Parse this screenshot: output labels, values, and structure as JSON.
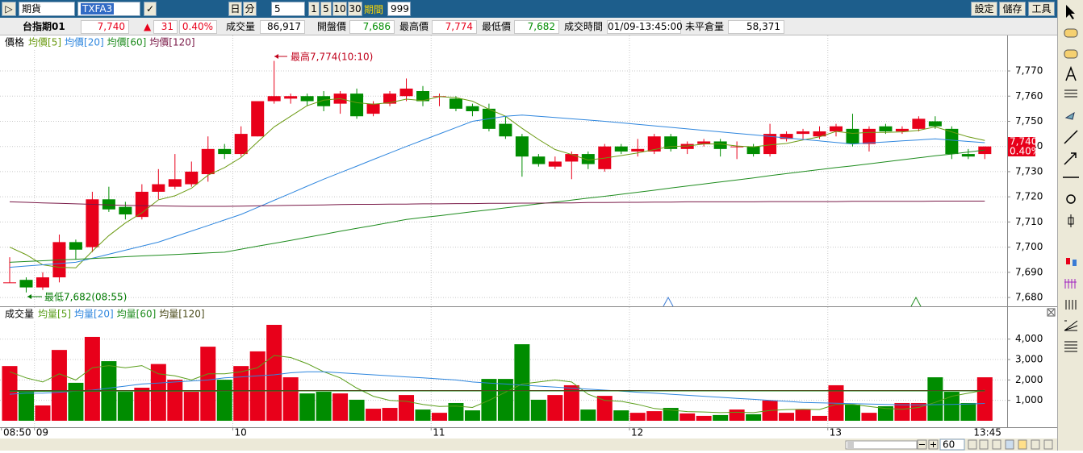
{
  "toolbar": {
    "market": "期貨",
    "symbol": "TXFA3",
    "day": "日",
    "minute": "分",
    "interval": "5",
    "quick": [
      "1",
      "5",
      "10",
      "30"
    ],
    "period_label": "期間",
    "period": "999",
    "buttons": [
      "設定",
      "儲存",
      "工具"
    ]
  },
  "info": {
    "name": "台指期01",
    "last": "7,740",
    "change": "31",
    "change_pct": "0.40%",
    "volume_label": "成交量",
    "volume": "86,917",
    "open_label": "開盤價",
    "open": "7,686",
    "high_label": "最高價",
    "high": "7,774",
    "low_label": "最低價",
    "low": "7,682",
    "time_label": "成交時間",
    "time": "01/09-13:45:00",
    "oi_label": "未平倉量",
    "oi": "58,371"
  },
  "chart_data": [
    {
      "type": "candlestick",
      "name": "價格",
      "up_color": "#e8001a",
      "down_color": "#008c00",
      "categories": [
        "08:50",
        null,
        "09",
        null,
        null,
        null,
        null,
        null,
        null,
        null,
        null,
        null,
        null,
        null,
        "10",
        null,
        null,
        null,
        null,
        null,
        null,
        null,
        null,
        null,
        null,
        null,
        "11",
        null,
        null,
        null,
        null,
        null,
        null,
        null,
        null,
        null,
        null,
        null,
        "12",
        null,
        null,
        null,
        null,
        null,
        null,
        null,
        null,
        null,
        null,
        null,
        "13",
        null,
        null,
        null,
        null,
        null,
        null,
        null,
        null,
        "13:45"
      ],
      "open": [
        7686,
        7687,
        7684,
        7688,
        7702,
        7700,
        7719,
        7716,
        7712,
        7722,
        7724,
        7725,
        7729,
        7739,
        7737,
        7744,
        7758,
        7759,
        7760,
        7760,
        7757,
        7761,
        7753,
        7757,
        7760,
        7762,
        7760,
        7759,
        7756,
        7755,
        7749,
        7744,
        7736,
        7732,
        7734,
        7737,
        7731,
        7740,
        7738,
        7738,
        7744,
        7739,
        7741,
        7742,
        7740,
        7740,
        7737,
        7743,
        7745,
        7744,
        7746,
        7747,
        7741,
        7748,
        7746,
        7747,
        7750,
        7747,
        7737,
        7737
      ],
      "high": [
        7696,
        7688,
        7690,
        7705,
        7703,
        7722,
        7724,
        7718,
        7725,
        7731,
        7737,
        7734,
        7744,
        7741,
        7748,
        7758,
        7774,
        7761,
        7761,
        7762,
        7762,
        7763,
        7758,
        7762,
        7767,
        7764,
        7761,
        7760,
        7757,
        7757,
        7752,
        7745,
        7737,
        7736,
        7738,
        7738,
        7741,
        7741,
        7743,
        7745,
        7745,
        7742,
        7743,
        7743,
        7742,
        7741,
        7749,
        7746,
        7747,
        7748,
        7749,
        7753,
        7748,
        7749,
        7748,
        7752,
        7752,
        7748,
        7739,
        7740
      ],
      "low": [
        7686,
        7682,
        7683,
        7686,
        7695,
        7698,
        7714,
        7711,
        7711,
        7719,
        7723,
        7724,
        7726,
        7735,
        7736,
        7744,
        7757,
        7757,
        7756,
        7754,
        7753,
        7751,
        7752,
        7756,
        7758,
        7756,
        7756,
        7754,
        7752,
        7746,
        7743,
        7728,
        7732,
        7731,
        7727,
        7731,
        7730,
        7737,
        7736,
        7737,
        7738,
        7737,
        7740,
        7736,
        7735,
        7736,
        7736,
        7742,
        7743,
        7743,
        7744,
        7740,
        7738,
        7745,
        7745,
        7746,
        7747,
        7735,
        7735,
        7735
      ],
      "close": [
        7686,
        7684,
        7688,
        7702,
        7699,
        7719,
        7715,
        7713,
        7722,
        7725,
        7727,
        7730,
        7739,
        7737,
        7745,
        7758,
        7760,
        7760,
        7758,
        7756,
        7761,
        7752,
        7757,
        7761,
        7763,
        7758,
        7760,
        7755,
        7754,
        7747,
        7744,
        7736,
        7733,
        7734,
        7737,
        7733,
        7740,
        7738,
        7739,
        7744,
        7739,
        7741,
        7742,
        7739,
        7740,
        7737,
        7745,
        7745,
        7746,
        7746,
        7748,
        7741,
        7747,
        7746,
        7747,
        7751,
        7748,
        7737,
        7736,
        7740
      ],
      "series": [
        {
          "name": "均價[5]",
          "color": "#6b9a12",
          "values": [
            7700,
            7697,
            7693,
            7692,
            7691.8,
            7698.4,
            7704.6,
            7709.6,
            7713.6,
            7718.8,
            7720.4,
            7723.4,
            7728.6,
            7731.6,
            7735.6,
            7741.8,
            7747.8,
            7752,
            7756.2,
            7758.4,
            7759,
            7757.4,
            7756.8,
            7757.4,
            7758.8,
            7758.2,
            7759.8,
            7759.4,
            7758,
            7754.8,
            7752,
            7747.2,
            7742.8,
            7738.8,
            7736.8,
            7734.6,
            7735.4,
            7736.4,
            7737.4,
            7738.8,
            7740,
            7740.2,
            7741,
            7741,
            7740.2,
            7739.8,
            7740.6,
            7741.2,
            7742.6,
            7743.8,
            7746,
            7745.2,
            7745.6,
            7745.6,
            7745.8,
            7746.4,
            7747.8,
            7745.8,
            7743.8,
            7742.4
          ]
        },
        {
          "name": "均價[20]",
          "color": "#2e86de",
          "values": [
            7692,
            7692.5,
            7693,
            7693.5,
            7694,
            7695.6,
            7697.2,
            7698.8,
            7700.4,
            7702,
            7704.2,
            7706.4,
            7708.6,
            7710.8,
            7713,
            7715.8,
            7718.6,
            7721.4,
            7724.2,
            7727,
            7729.6,
            7732.2,
            7734.8,
            7737.4,
            7740,
            7742.5,
            7745,
            7747.5,
            7750,
            7751,
            7752,
            7752.5,
            7752,
            7751.5,
            7751,
            7750.5,
            7750,
            7749.4,
            7748.8,
            7748.2,
            7747.6,
            7747,
            7746.4,
            7745.8,
            7745.2,
            7744.6,
            7744,
            7743.4,
            7742.8,
            7742.2,
            7741.6,
            7741,
            7741.4,
            7741.8,
            7742.2,
            7742.6,
            7743,
            7742.5,
            7742,
            7741.5
          ]
        },
        {
          "name": "均價[60]",
          "color": "#1e8c1e",
          "values": [
            7694,
            7694.3,
            7694.6,
            7694.9,
            7695.2,
            7695.5,
            7695.8,
            7696.2,
            7696.5,
            7696.8,
            7697.1,
            7697.4,
            7697.7,
            7698,
            7699.2,
            7700.4,
            7701.5,
            7702.7,
            7703.9,
            7705.1,
            7706.3,
            7707.5,
            7708.6,
            7709.8,
            7711,
            7711.8,
            7712.5,
            7713.3,
            7714.1,
            7714.8,
            7715.6,
            7716.4,
            7717.2,
            7717.9,
            7718.7,
            7719.5,
            7720.2,
            7721,
            7721.8,
            7722.6,
            7723.5,
            7724.3,
            7725.1,
            7725.9,
            7726.7,
            7727.5,
            7728.4,
            7729.2,
            7730,
            7730.8,
            7731.6,
            7732.3,
            7733.1,
            7733.9,
            7734.7,
            7735.5,
            7736.3,
            7737,
            7737.8,
            7738.6
          ]
        },
        {
          "name": "均價[120]",
          "color": "#7a1a48",
          "values": [
            7718,
            7717.8,
            7717.6,
            7717.4,
            7717.2,
            7717,
            7716.8,
            7716.6,
            7716.5,
            7716.4,
            7716.3,
            7716.2,
            7716.2,
            7716.2,
            7716.3,
            7716.4,
            7716.5,
            7716.6,
            7716.7,
            7716.8,
            7716.9,
            7717,
            7717,
            7717.1,
            7717.1,
            7717.2,
            7717.2,
            7717.3,
            7717.3,
            7717.4,
            7717.4,
            7717.5,
            7717.5,
            7717.6,
            7717.6,
            7717.7,
            7717.7,
            7717.8,
            7717.8,
            7717.9,
            7717.9,
            7718,
            7718,
            7718,
            7718,
            7718,
            7718.1,
            7718.1,
            7718.1,
            7718.1,
            7718.1,
            7718.2,
            7718.2,
            7718.2,
            7718.2,
            7718.2,
            7718.3,
            7718.3,
            7718.3,
            7718.3
          ]
        }
      ],
      "ylim": [
        7676.5,
        7784.1
      ],
      "yticks": [
        {
          "value": 7680,
          "label": "7,680"
        },
        {
          "value": 7690,
          "label": "7,690"
        },
        {
          "value": 7700,
          "label": "7,700"
        },
        {
          "value": 7710,
          "label": "7,710"
        },
        {
          "value": 7720,
          "label": "7,720"
        },
        {
          "value": 7730,
          "label": "7,730"
        },
        {
          "value": 7740,
          "label": "7,740"
        },
        {
          "value": 7750,
          "label": "7,750"
        },
        {
          "value": 7760,
          "label": "7,760"
        },
        {
          "value": 7770,
          "label": "7,770"
        }
      ],
      "grid": true,
      "annotations": [
        "最高7,774(10:10)",
        "最低7,682(08:55)"
      ]
    },
    {
      "type": "bar",
      "name": "成交量",
      "values": [
        2680,
        1420,
        750,
        3470,
        1860,
        4110,
        2920,
        1420,
        1620,
        2780,
        2010,
        1420,
        3630,
        2010,
        2680,
        3400,
        4700,
        2130,
        1340,
        1420,
        1340,
        1030,
        590,
        630,
        1260,
        550,
        390,
        870,
        510,
        2050,
        2050,
        3750,
        1030,
        1260,
        1740,
        550,
        1220,
        510,
        390,
        470,
        630,
        360,
        240,
        280,
        550,
        320,
        990,
        390,
        550,
        240,
        1740,
        790,
        390,
        710,
        870,
        870,
        2130,
        1420,
        870,
        2130
      ],
      "series": [
        {
          "name": "均量[5]",
          "color": "#5a9e1a",
          "values": [
            2400,
            2100,
            1900,
            2300,
            2000,
            2600,
            2700,
            2600,
            2700,
            2300,
            2200,
            2000,
            2300,
            2300,
            2400,
            2600,
            3200,
            3100,
            2800,
            2400,
            2100,
            1600,
            1200,
            1000,
            950,
            800,
            700,
            720,
            650,
            1000,
            1400,
            1800,
            1900,
            2000,
            1900,
            1300,
            1000,
            950,
            800,
            600,
            520,
            450,
            430,
            400,
            420,
            400,
            500,
            550,
            560,
            550,
            800,
            800,
            700,
            600,
            560,
            650,
            900,
            1200,
            1350,
            1500
          ]
        },
        {
          "name": "均量[20]",
          "color": "#2e86de",
          "values": [
            1300,
            1350,
            1350,
            1400,
            1450,
            1500,
            1600,
            1700,
            1800,
            1850,
            1900,
            1950,
            2000,
            2100,
            2150,
            2200,
            2250,
            2350,
            2400,
            2400,
            2350,
            2300,
            2250,
            2200,
            2150,
            2100,
            2050,
            2000,
            1900,
            1850,
            1800,
            1750,
            1700,
            1650,
            1600,
            1550,
            1500,
            1450,
            1400,
            1350,
            1300,
            1250,
            1200,
            1150,
            1100,
            1050,
            1000,
            950,
            900,
            880,
            860,
            840,
            820,
            800,
            780,
            780,
            790,
            800,
            820,
            850
          ]
        },
        {
          "name": "均量[60]",
          "color": "#1e8c1e",
          "values": [
            1440,
            1440,
            1440,
            1445,
            1445,
            1445,
            1450,
            1450,
            1450,
            1450,
            1455,
            1455,
            1455,
            1455,
            1460,
            1460,
            1460,
            1460,
            1460,
            1460,
            1460,
            1460,
            1460,
            1460,
            1460,
            1460,
            1460,
            1460,
            1460,
            1460,
            1460,
            1460,
            1460,
            1460,
            1460,
            1460,
            1460,
            1460,
            1460,
            1460,
            1460,
            1460,
            1460,
            1460,
            1460,
            1460,
            1460,
            1460,
            1460,
            1460,
            1460,
            1460,
            1460,
            1460,
            1460,
            1460,
            1460,
            1460,
            1460,
            1460
          ]
        },
        {
          "name": "均量[120]",
          "color": "#4a4a1a",
          "values": [
            1480,
            1480,
            1480,
            1480,
            1480,
            1480,
            1480,
            1480,
            1480,
            1480,
            1480,
            1480,
            1480,
            1480,
            1480,
            1480,
            1480,
            1480,
            1480,
            1480,
            1480,
            1480,
            1480,
            1480,
            1480,
            1480,
            1480,
            1480,
            1480,
            1480,
            1480,
            1480,
            1480,
            1480,
            1480,
            1480,
            1480,
            1480,
            1480,
            1480,
            1480,
            1480,
            1480,
            1480,
            1480,
            1480,
            1480,
            1480,
            1480,
            1480,
            1480,
            1480,
            1480,
            1480,
            1480,
            1480,
            1480,
            1480,
            1480,
            1480
          ]
        }
      ],
      "ylim": [
        0,
        5530
      ],
      "yticks": [
        {
          "value": 1000,
          "label": "1,000"
        },
        {
          "value": 2000,
          "label": "2,000"
        },
        {
          "value": 3000,
          "label": "3,000"
        },
        {
          "value": 4000,
          "label": "4,000"
        }
      ],
      "grid": true
    }
  ],
  "footer": {
    "zoom": "60"
  }
}
